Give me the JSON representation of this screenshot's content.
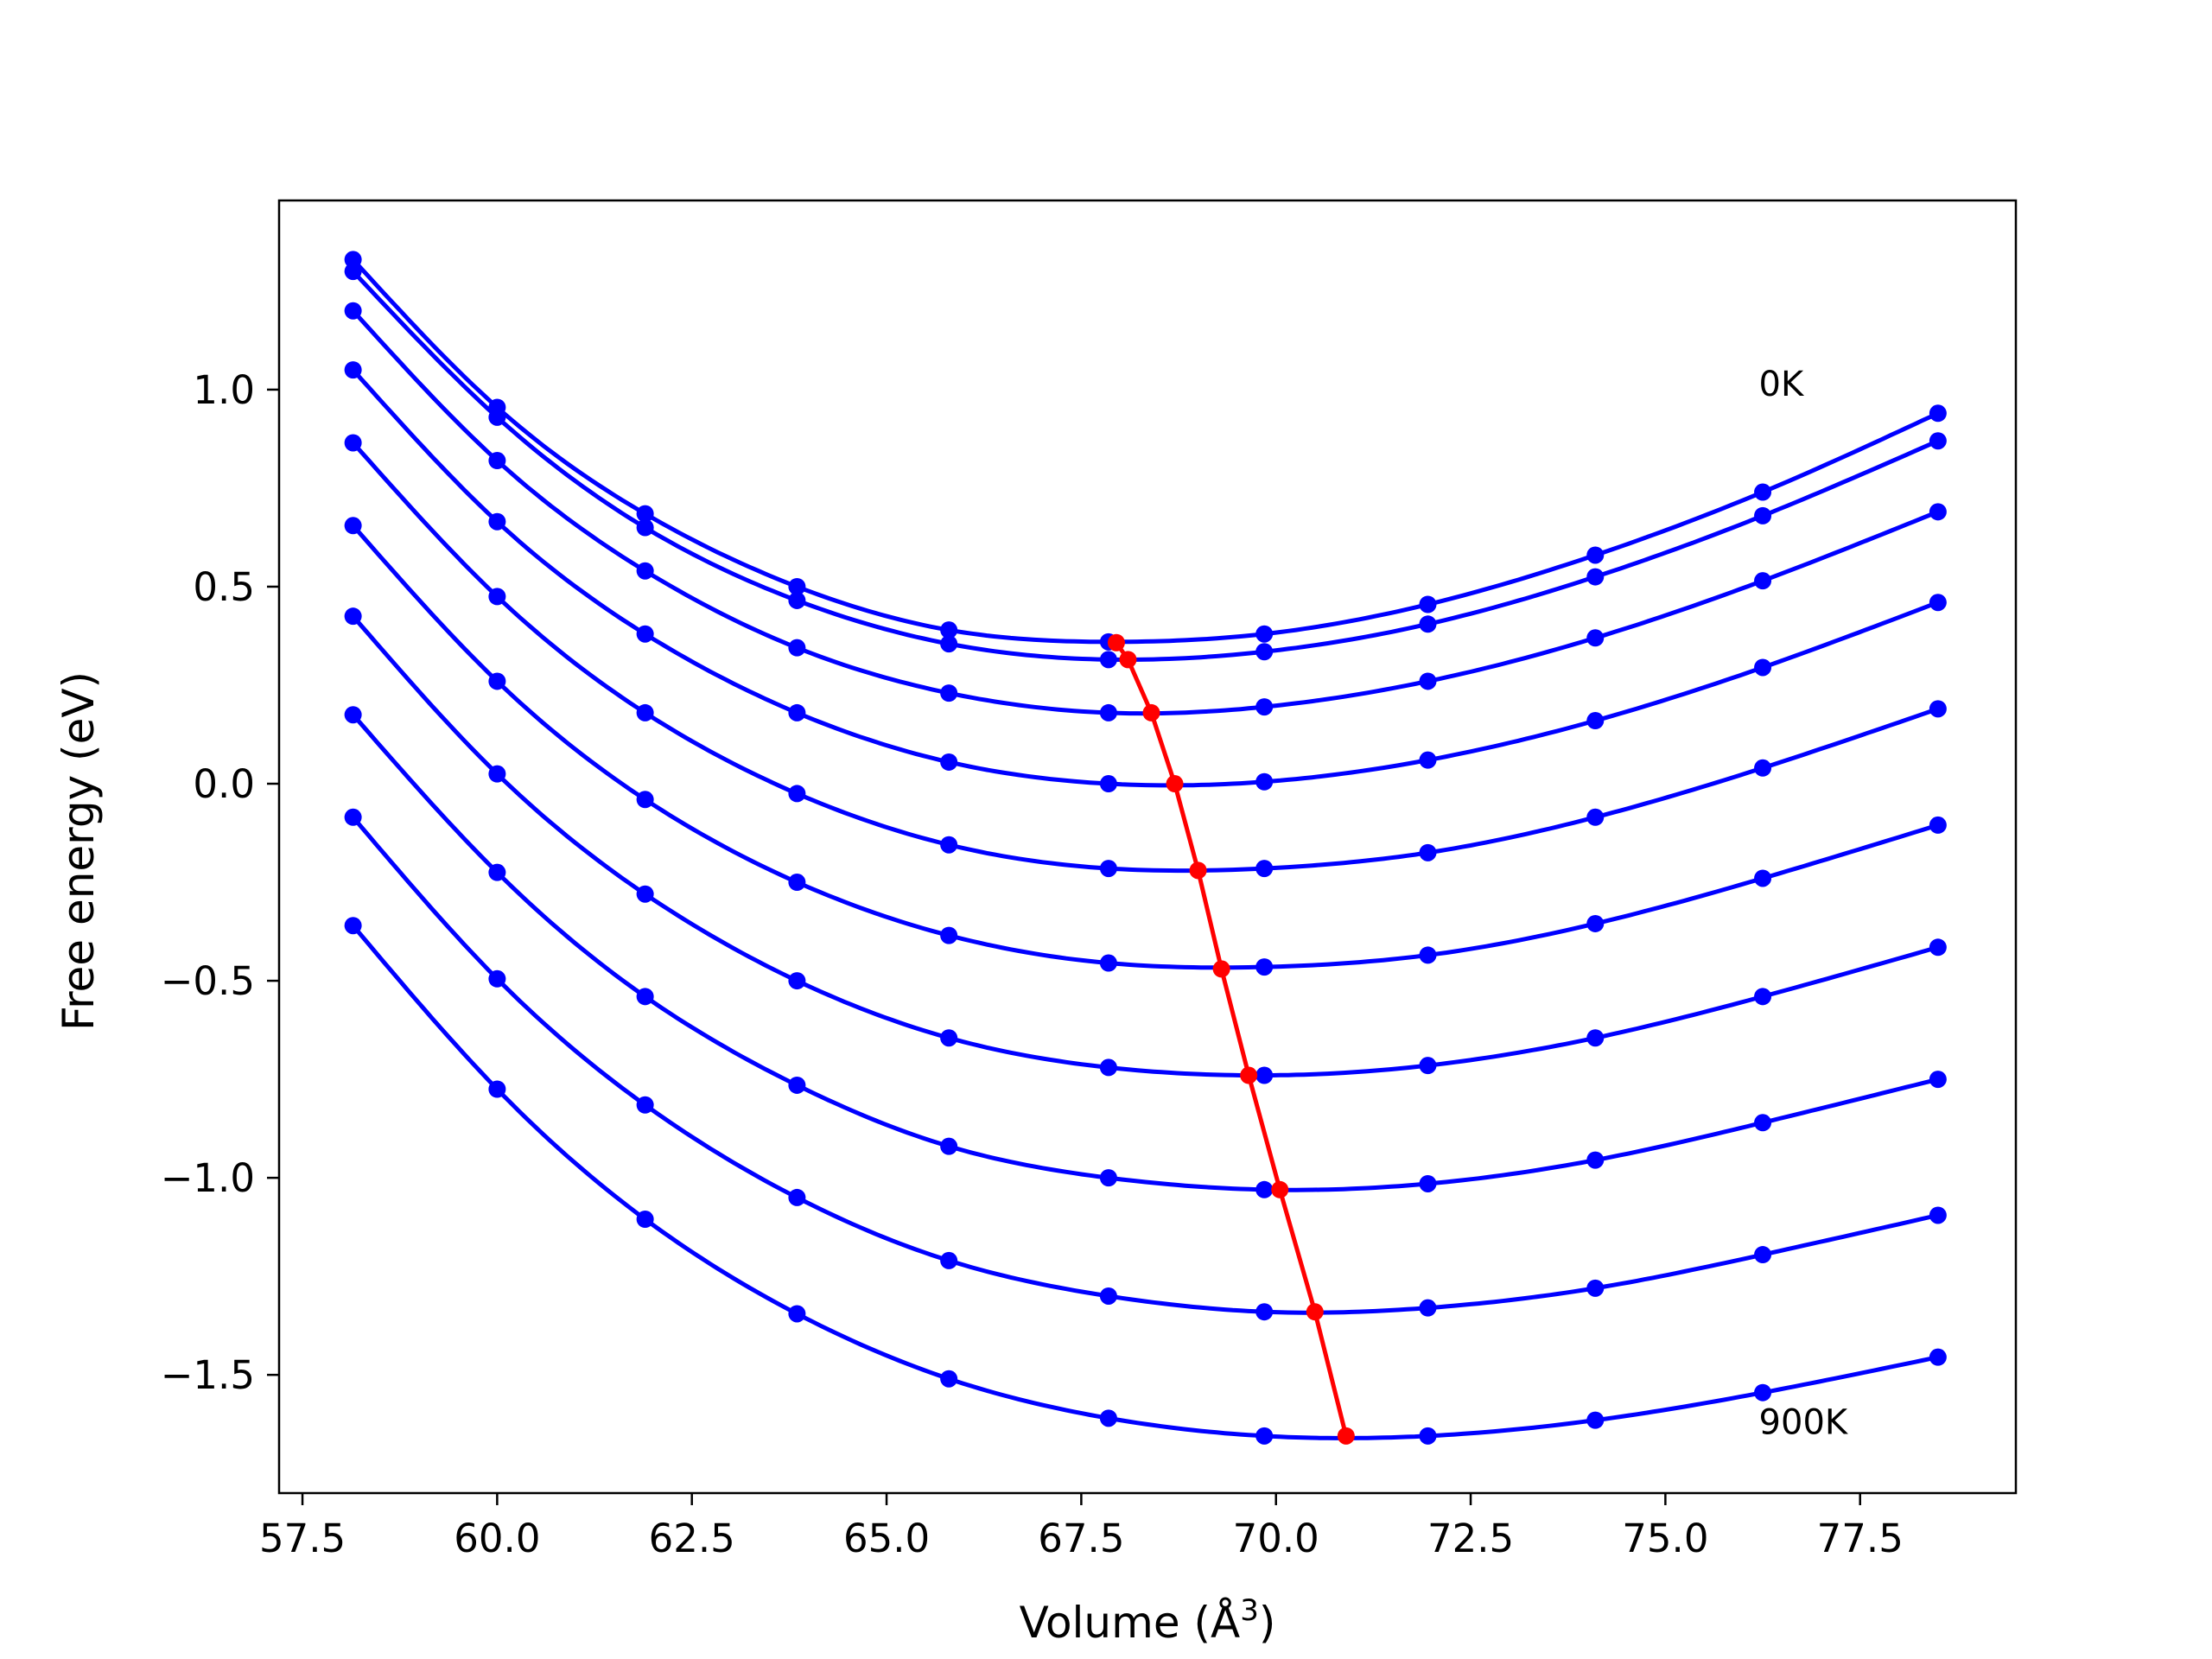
{
  "chart_data": {
    "type": "line",
    "xlabel": "Volume (Å",
    "xlabel_sup": "3",
    "xlabel_close": ")",
    "ylabel": "Free energy (eV)",
    "xlim": [
      57.2,
      79.5
    ],
    "ylim": [
      -1.8,
      1.48
    ],
    "xticks": [
      57.5,
      60.0,
      62.5,
      65.0,
      67.5,
      70.0,
      72.5,
      75.0,
      77.5
    ],
    "xtick_labels": [
      "57.5",
      "60.0",
      "62.5",
      "65.0",
      "67.5",
      "70.0",
      "72.5",
      "75.0",
      "77.5"
    ],
    "yticks": [
      -1.5,
      -1.0,
      -0.5,
      0.0,
      0.5,
      1.0
    ],
    "ytick_labels": [
      "−1.5",
      "−1.0",
      "−0.5",
      "0.0",
      "0.5",
      "1.0"
    ],
    "grid": false,
    "curve_color": "#0000ff",
    "minima_color": "#ff0000",
    "x": [
      58.15,
      60.0,
      61.9,
      63.85,
      65.8,
      67.85,
      69.85,
      71.95,
      74.1,
      76.25,
      78.5
    ],
    "series": [
      {
        "values": [
          1.33,
          0.955,
          0.685,
          0.5,
          0.39,
          0.36,
          0.38,
          0.455,
          0.58,
          0.74,
          0.94
        ]
      },
      {
        "values": [
          1.3,
          0.93,
          0.65,
          0.465,
          0.355,
          0.315,
          0.335,
          0.405,
          0.525,
          0.68,
          0.87
        ]
      },
      {
        "values": [
          1.2,
          0.82,
          0.54,
          0.345,
          0.23,
          0.18,
          0.195,
          0.26,
          0.37,
          0.515,
          0.69
        ]
      },
      {
        "values": [
          1.05,
          0.665,
          0.38,
          0.18,
          0.055,
          0.0,
          0.005,
          0.06,
          0.16,
          0.295,
          0.46
        ]
      },
      {
        "values": [
          0.865,
          0.475,
          0.18,
          -0.025,
          -0.155,
          -0.215,
          -0.215,
          -0.175,
          -0.085,
          0.04,
          0.19
        ]
      },
      {
        "values": [
          0.655,
          0.26,
          -0.04,
          -0.25,
          -0.385,
          -0.455,
          -0.465,
          -0.435,
          -0.355,
          -0.24,
          -0.105
        ]
      },
      {
        "values": [
          0.425,
          0.025,
          -0.28,
          -0.5,
          -0.645,
          -0.72,
          -0.74,
          -0.715,
          -0.645,
          -0.54,
          -0.415
        ]
      },
      {
        "values": [
          0.175,
          -0.225,
          -0.54,
          -0.765,
          -0.92,
          -1.0,
          -1.03,
          -1.015,
          -0.955,
          -0.86,
          -0.75
        ]
      },
      {
        "values": [
          -0.085,
          -0.495,
          -0.815,
          -1.05,
          -1.21,
          -1.3,
          -1.34,
          -1.33,
          -1.28,
          -1.195,
          -1.095
        ]
      },
      {
        "values": [
          -0.36,
          -0.775,
          -1.105,
          -1.345,
          -1.51,
          -1.61,
          -1.655,
          -1.655,
          -1.615,
          -1.545,
          -1.455
        ]
      }
    ],
    "minima": {
      "x": [
        67.95,
        68.1,
        68.4,
        68.7,
        69.0,
        69.3,
        69.65,
        70.05,
        70.5,
        70.9
      ],
      "y": [
        0.358,
        0.315,
        0.18,
        0.0,
        -0.22,
        -0.47,
        -0.74,
        -1.03,
        -1.34,
        -1.655
      ]
    },
    "annotations": [
      {
        "text": "0K",
        "x": 76.2,
        "y": 0.985
      },
      {
        "text": "900K",
        "x": 76.2,
        "y": -1.65
      }
    ]
  }
}
